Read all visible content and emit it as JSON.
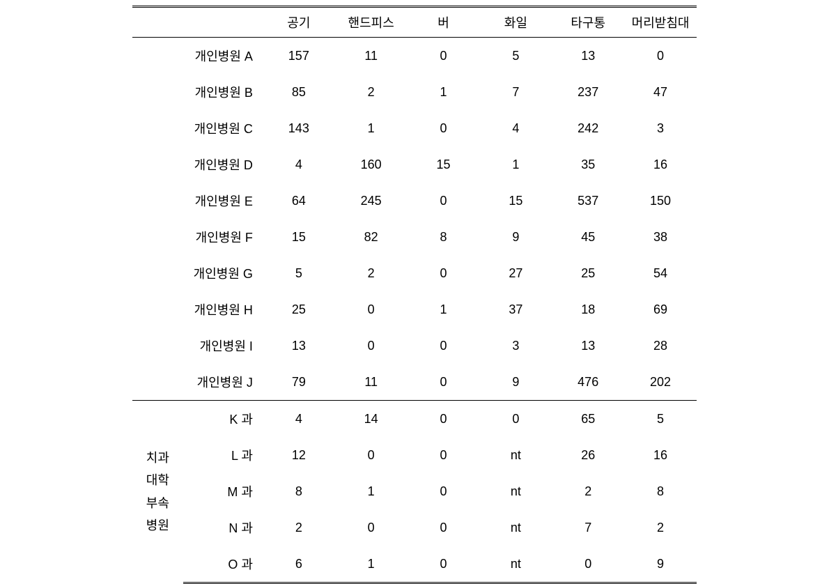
{
  "headers": {
    "c1": "",
    "c2": "",
    "c3": "공기",
    "c4": "핸드피스",
    "c5": "버",
    "c6": "화일",
    "c7": "타구통",
    "c8": "머리받침대"
  },
  "group1": {
    "label_prefix": "개인병원",
    "rows": [
      {
        "name": "개인병원 A",
        "v": [
          "157",
          "11",
          "0",
          "5",
          "13",
          "0"
        ]
      },
      {
        "name": "개인병원 B",
        "v": [
          "85",
          "2",
          "1",
          "7",
          "237",
          "47"
        ]
      },
      {
        "name": "개인병원 C",
        "v": [
          "143",
          "1",
          "0",
          "4",
          "242",
          "3"
        ]
      },
      {
        "name": "개인병원 D",
        "v": [
          "4",
          "160",
          "15",
          "1",
          "35",
          "16"
        ]
      },
      {
        "name": "개인병원 E",
        "v": [
          "64",
          "245",
          "0",
          "15",
          "537",
          "150"
        ]
      },
      {
        "name": "개인병원 F",
        "v": [
          "15",
          "82",
          "8",
          "9",
          "45",
          "38"
        ]
      },
      {
        "name": "개인병원 G",
        "v": [
          "5",
          "2",
          "0",
          "27",
          "25",
          "54"
        ]
      },
      {
        "name": "개인병원 H",
        "v": [
          "25",
          "0",
          "1",
          "37",
          "18",
          "69"
        ]
      },
      {
        "name": "개인병원 I",
        "v": [
          "13",
          "0",
          "0",
          "3",
          "13",
          "28"
        ]
      },
      {
        "name": "개인병원 J",
        "v": [
          "79",
          "11",
          "0",
          "9",
          "476",
          "202"
        ]
      }
    ]
  },
  "group2": {
    "vertical_label": {
      "l1": "치과",
      "l2": "대학",
      "l3": "부속",
      "l4": "병원"
    },
    "rows": [
      {
        "name": "K 과",
        "v": [
          "4",
          "14",
          "0",
          "0",
          "65",
          "5"
        ]
      },
      {
        "name": "L 과",
        "v": [
          "12",
          "0",
          "0",
          "nt",
          "26",
          "16"
        ]
      },
      {
        "name": "M 과",
        "v": [
          "8",
          "1",
          "0",
          "nt",
          "2",
          "8"
        ]
      },
      {
        "name": "N 과",
        "v": [
          "2",
          "0",
          "0",
          "nt",
          "7",
          "2"
        ]
      },
      {
        "name": "O 과",
        "v": [
          "6",
          "1",
          "0",
          "nt",
          "0",
          "9"
        ]
      }
    ]
  }
}
